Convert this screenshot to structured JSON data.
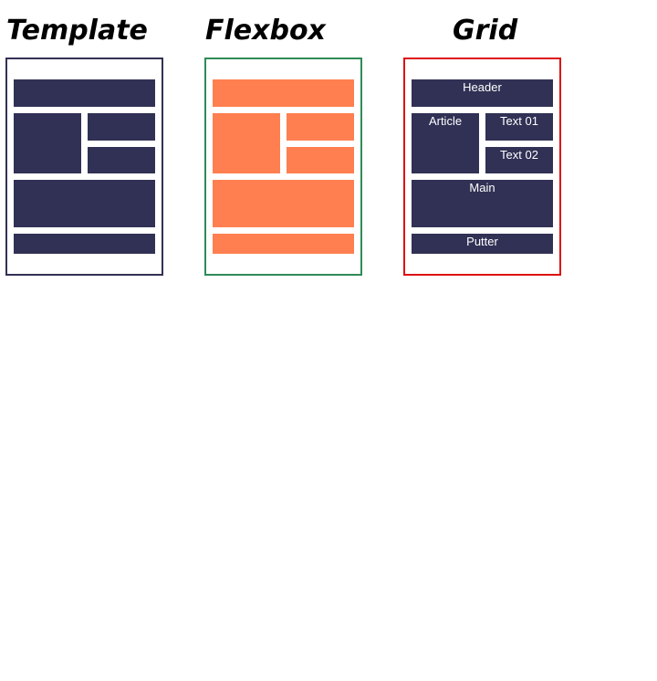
{
  "colors": {
    "navy": "#313155",
    "orange": "#ff7f50",
    "green_border": "#2e8b57",
    "red_border": "#dd1111",
    "navy_border": "#313155"
  },
  "panels": [
    {
      "title": "Template",
      "labels": {
        "header": "",
        "article": "",
        "text01": "",
        "text02": "",
        "main": "",
        "footer": ""
      }
    },
    {
      "title": "Flexbox",
      "labels": {
        "header": "",
        "article": "",
        "text01": "",
        "text02": "",
        "main": "",
        "footer": ""
      }
    },
    {
      "title": "Grid",
      "labels": {
        "header": "Header",
        "article": "Article",
        "text01": "Text 01",
        "text02": "Text 02",
        "main": "Main",
        "footer": "Putter"
      }
    }
  ]
}
